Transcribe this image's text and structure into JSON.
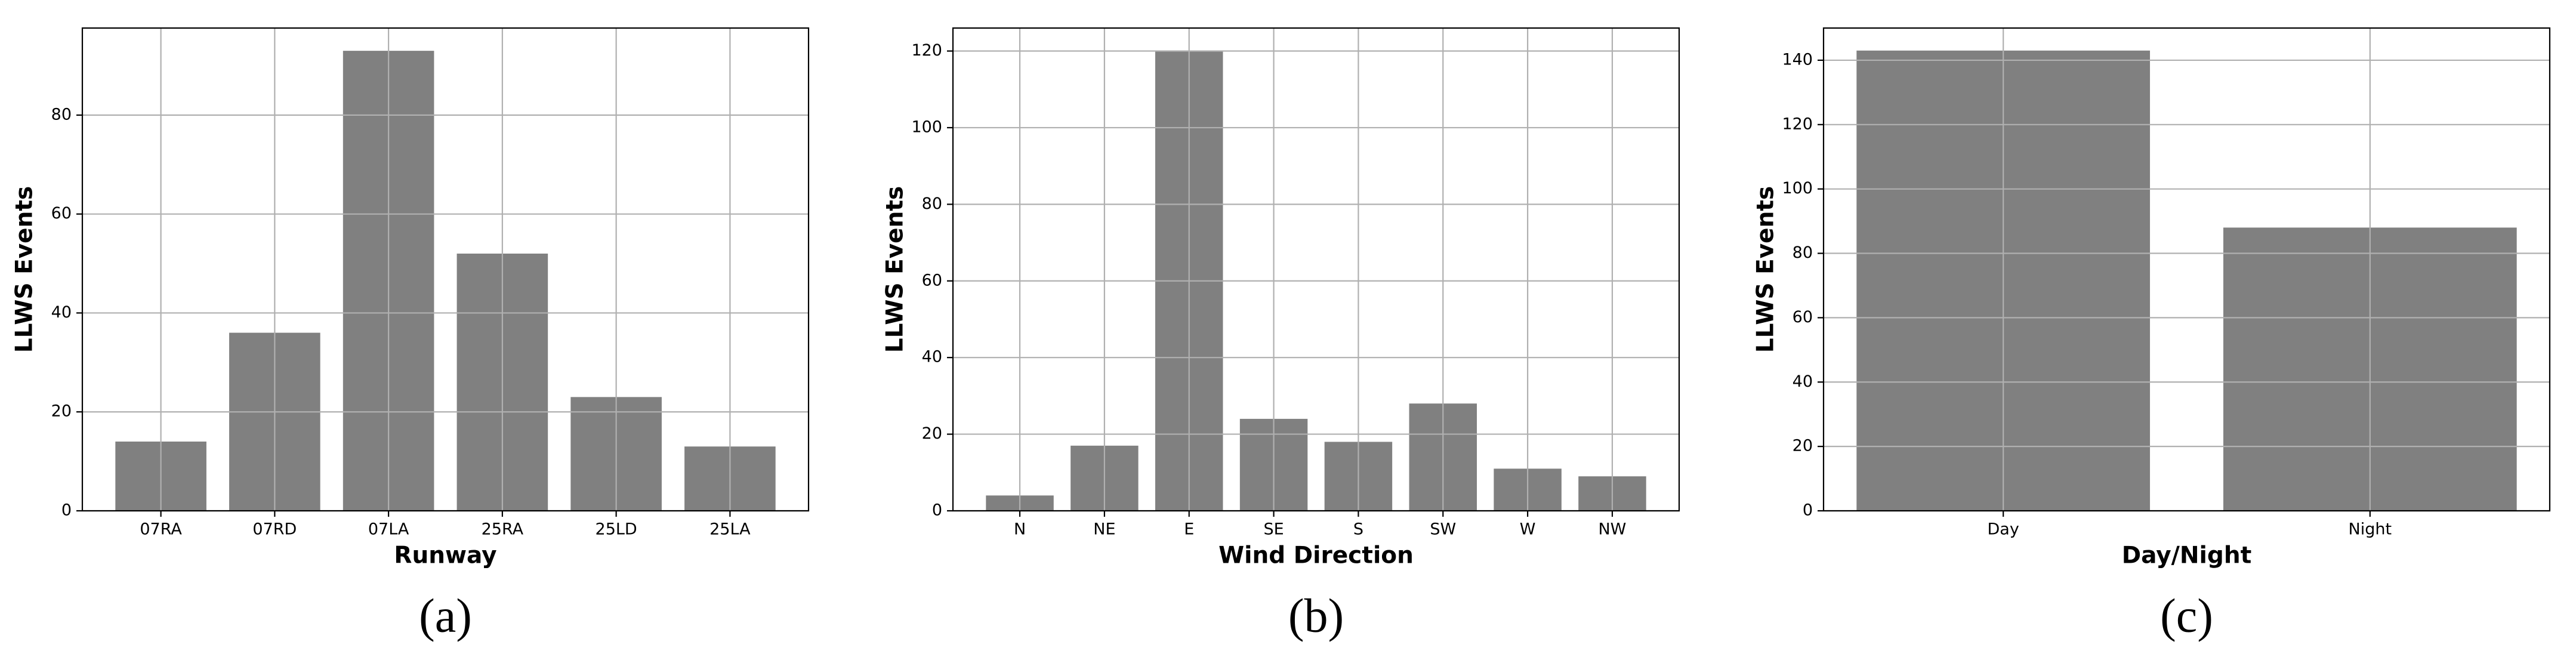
{
  "chart_data": [
    {
      "type": "bar",
      "caption": "(a)",
      "xlabel": "Runway",
      "ylabel": "LLWS Events",
      "categories": [
        "07RA",
        "07RD",
        "07LA",
        "25RA",
        "25LD",
        "25LA"
      ],
      "values": [
        14,
        36,
        93,
        52,
        23,
        13
      ],
      "color": "#808080",
      "ylim": [
        0,
        97.6
      ],
      "yticks": [
        0,
        20,
        40,
        60,
        80
      ],
      "grid": true
    },
    {
      "type": "bar",
      "caption": "(b)",
      "xlabel": "Wind Direction",
      "ylabel": "LLWS Events",
      "categories": [
        "N",
        "NE",
        "E",
        "SE",
        "S",
        "SW",
        "W",
        "NW"
      ],
      "values": [
        4,
        17,
        120,
        24,
        18,
        28,
        11,
        9
      ],
      "color": "#808080",
      "ylim": [
        0,
        126
      ],
      "yticks": [
        0,
        20,
        40,
        60,
        80,
        100,
        120
      ],
      "grid": true
    },
    {
      "type": "bar",
      "caption": "(c)",
      "xlabel": "Day/Night",
      "ylabel": "LLWS Events",
      "categories": [
        "Day",
        "Night"
      ],
      "values": [
        143,
        88
      ],
      "color": "#808080",
      "ylim": [
        0,
        150
      ],
      "yticks": [
        0,
        20,
        40,
        60,
        80,
        100,
        120,
        140
      ],
      "grid": true
    }
  ]
}
